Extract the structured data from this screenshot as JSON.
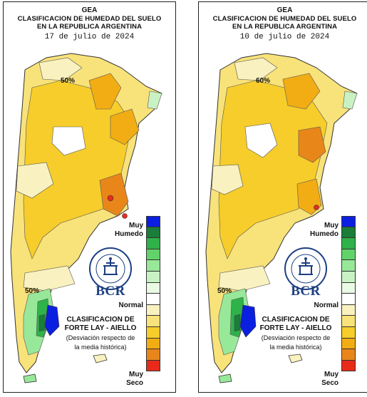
{
  "panels": [
    {
      "id": "left",
      "header": {
        "org": "GEA",
        "title_line1": "CLASIFICACION DE HUMEDAD DEL SUELO",
        "title_line2": "EN LA REPUBLICA ARGENTINA",
        "date": "17 de julio de 2024"
      },
      "isolines": [
        "50%",
        "50%"
      ]
    },
    {
      "id": "right",
      "header": {
        "org": "GEA",
        "title_line1": "CLASIFICACION DE HUMEDAD DEL SUELO",
        "title_line2": "EN LA REPUBLICA ARGENTINA",
        "date": "10 de julio de 2024"
      },
      "isolines": [
        "60%",
        "50%"
      ]
    }
  ],
  "legend": {
    "top_label_line1": "Muy",
    "top_label_line2": "Humedo",
    "middle_label": "Normal",
    "bottom_label_line1": "Muy",
    "bottom_label_line2": "Seco",
    "colors": [
      "#0b1fe0",
      "#1a7d3a",
      "#2fb24a",
      "#62d36a",
      "#98e89a",
      "#c8f2c4",
      "#eafae4",
      "#ffffff",
      "#f9f2c0",
      "#f8e27a",
      "#f6cd2a",
      "#f2ad14",
      "#e9861a",
      "#e82a1a"
    ]
  },
  "brand": {
    "logo_text": "BCR",
    "seal_lettering": "BOLSA DE COMERCIO DE ROSARIO"
  },
  "classification": {
    "title_line1": "CLASIFICACION DE",
    "title_line2": "FORTE LAY - AIELLO",
    "subtitle_line1": "(Desviación respecto de",
    "subtitle_line2": "la media histórica)"
  },
  "palette": {
    "very_wet": "#0b1fe0",
    "wet_green": "#2fb24a",
    "light_green": "#c8f2c4",
    "normal": "#ffffff",
    "pale_yellow": "#f9f2c0",
    "yellow": "#f6cd2a",
    "orange": "#e9861a",
    "very_dry": "#e82a1a"
  }
}
